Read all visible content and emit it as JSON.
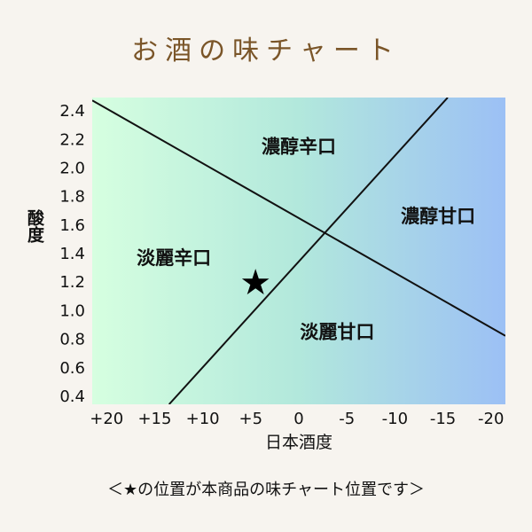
{
  "title": "お酒の味チャート",
  "footnote": "＜★の位置が本商品の味チャート位置です＞",
  "chart_data": {
    "type": "scatter",
    "xlabel": "日本酒度",
    "ylabel": "酸度",
    "x_ticks": [
      "+20",
      "+15",
      "+10",
      "+5",
      "0",
      "-5",
      "-10",
      "-15",
      "-20"
    ],
    "x_tick_values": [
      20,
      15,
      10,
      5,
      0,
      -5,
      -10,
      -15,
      -20
    ],
    "xlim": [
      21.5,
      -21.5
    ],
    "ylim": [
      0.35,
      2.5
    ],
    "y_ticks": [
      0.4,
      0.6,
      0.8,
      1.0,
      1.2,
      1.4,
      1.6,
      1.8,
      2.0,
      2.2,
      2.4
    ],
    "y_tick_labels": [
      "0.4",
      "0.6",
      "0.8",
      "1.0",
      "1.2",
      "1.4",
      "1.6",
      "1.8",
      "2.0",
      "2.2",
      "2.4"
    ],
    "grid": false,
    "background_gradient": [
      "#d6ffe0",
      "#b2e8dc",
      "#9cc0f5"
    ],
    "lines": [
      {
        "x1": 21.5,
        "y1": 2.48,
        "x2": -21.5,
        "y2": 0.83
      },
      {
        "x1": 13.5,
        "y1": 0.35,
        "x2": -15.5,
        "y2": 2.5
      }
    ],
    "regions": [
      {
        "label": "濃醇辛口",
        "x": 0,
        "y": 2.15
      },
      {
        "label": "濃醇甘口",
        "x": -14.5,
        "y": 1.66
      },
      {
        "label": "淡麗辛口",
        "x": 13,
        "y": 1.37
      },
      {
        "label": "淡麗甘口",
        "x": -4,
        "y": 0.85
      }
    ],
    "marker": {
      "symbol": "★",
      "x": 4.5,
      "y": 1.2
    }
  }
}
